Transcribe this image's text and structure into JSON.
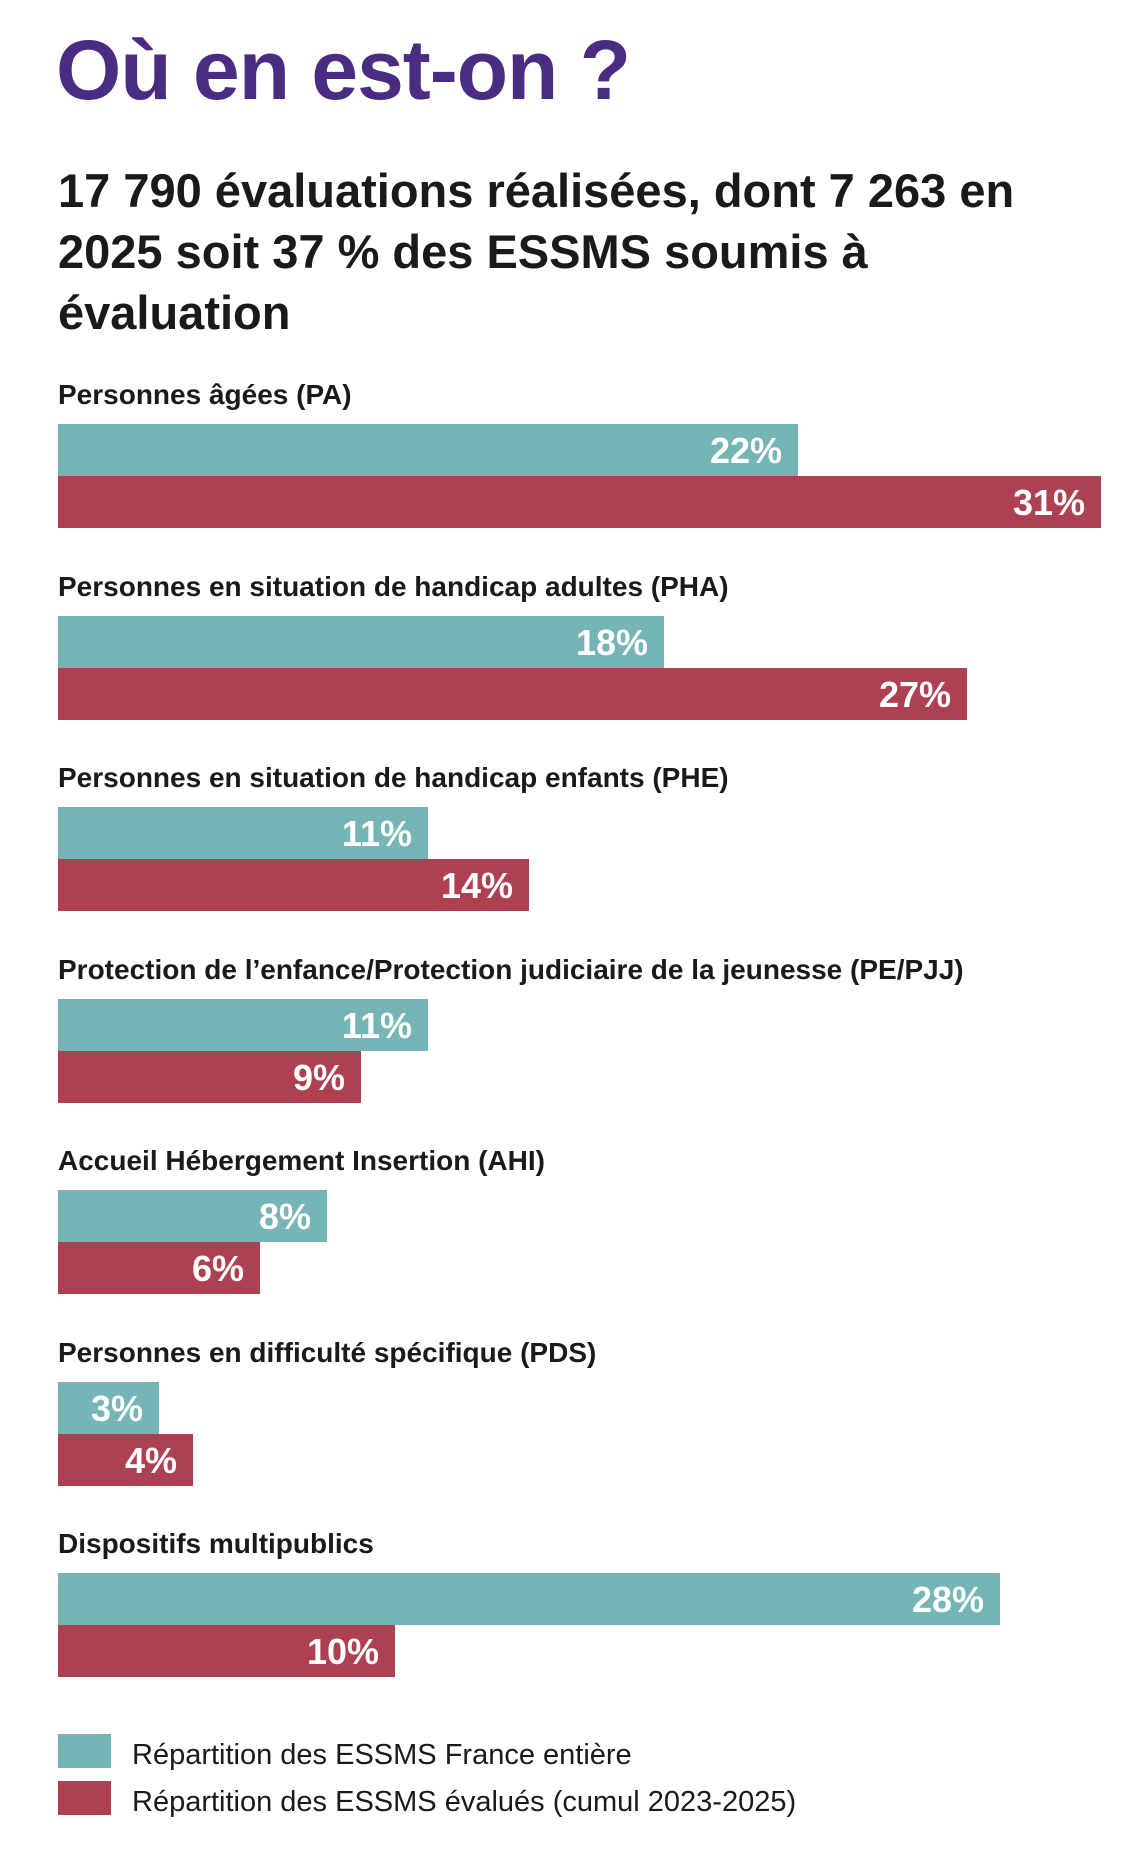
{
  "title": "Où en est-on ?",
  "subtitle": "17 790 évaluations réalisées, dont 7 263 en 2025 soit 37 % des ESSMS soumis à évaluation",
  "chart_data": {
    "type": "bar",
    "orientation": "horizontal",
    "unit": "%",
    "categories": [
      "Personnes âgées (PA)",
      "Personnes en situation de handicap adultes (PHA)",
      "Personnes en situation de handicap enfants (PHE)",
      "Protection de l’enfance/Protection judiciaire de la jeunesse (PE/PJJ)",
      "Accueil Hébergement Insertion (AHI)",
      "Personnes en difficulté spécifique (PDS)",
      "Dispositifs multipublics"
    ],
    "series": [
      {
        "name": "Répartition des ESSMS France entière",
        "color": "#76b5b5",
        "values": [
          22,
          18,
          11,
          11,
          8,
          3,
          28
        ],
        "labels": [
          "22%",
          "18%",
          "11%",
          "11%",
          "8%",
          "3%",
          "28%"
        ]
      },
      {
        "name": "Répartition des ESSMS évalués (cumul 2023-2025)",
        "color": "#ad4152",
        "values": [
          31,
          27,
          14,
          9,
          6,
          4,
          10
        ],
        "labels": [
          "31%",
          "27%",
          "14%",
          "9%",
          "6%",
          "4%",
          "10%"
        ]
      }
    ],
    "legend": "bottom-left",
    "grid": false
  }
}
